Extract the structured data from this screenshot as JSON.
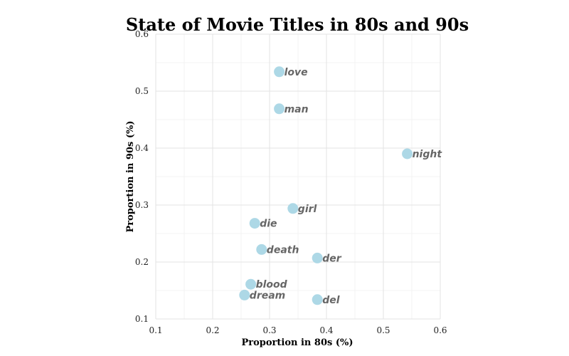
{
  "chart_data": {
    "type": "scatter",
    "title": "State of Movie Titles in 80s and 90s",
    "xlabel": "Proportion in 80s (%)",
    "ylabel": "Proportion in 90s (%)",
    "xlim": [
      0.1,
      0.6
    ],
    "ylim": [
      0.1,
      0.6
    ],
    "xticks": [
      "0.1",
      "0.2",
      "0.3",
      "0.4",
      "0.5",
      "0.6"
    ],
    "yticks": [
      "0.1",
      "0.2",
      "0.3",
      "0.4",
      "0.5",
      "0.6"
    ],
    "grid": true,
    "point_color": "#add8e6",
    "label_color": "#666666",
    "points": [
      {
        "label": "love",
        "x": 0.317,
        "y": 0.534
      },
      {
        "label": "man",
        "x": 0.317,
        "y": 0.469
      },
      {
        "label": "night",
        "x": 0.542,
        "y": 0.39
      },
      {
        "label": "girl",
        "x": 0.341,
        "y": 0.294
      },
      {
        "label": "die",
        "x": 0.274,
        "y": 0.268
      },
      {
        "label": "death",
        "x": 0.286,
        "y": 0.222
      },
      {
        "label": "der",
        "x": 0.384,
        "y": 0.207
      },
      {
        "label": "blood",
        "x": 0.267,
        "y": 0.161
      },
      {
        "label": "dream",
        "x": 0.256,
        "y": 0.142
      },
      {
        "label": "del",
        "x": 0.384,
        "y": 0.134
      }
    ]
  }
}
